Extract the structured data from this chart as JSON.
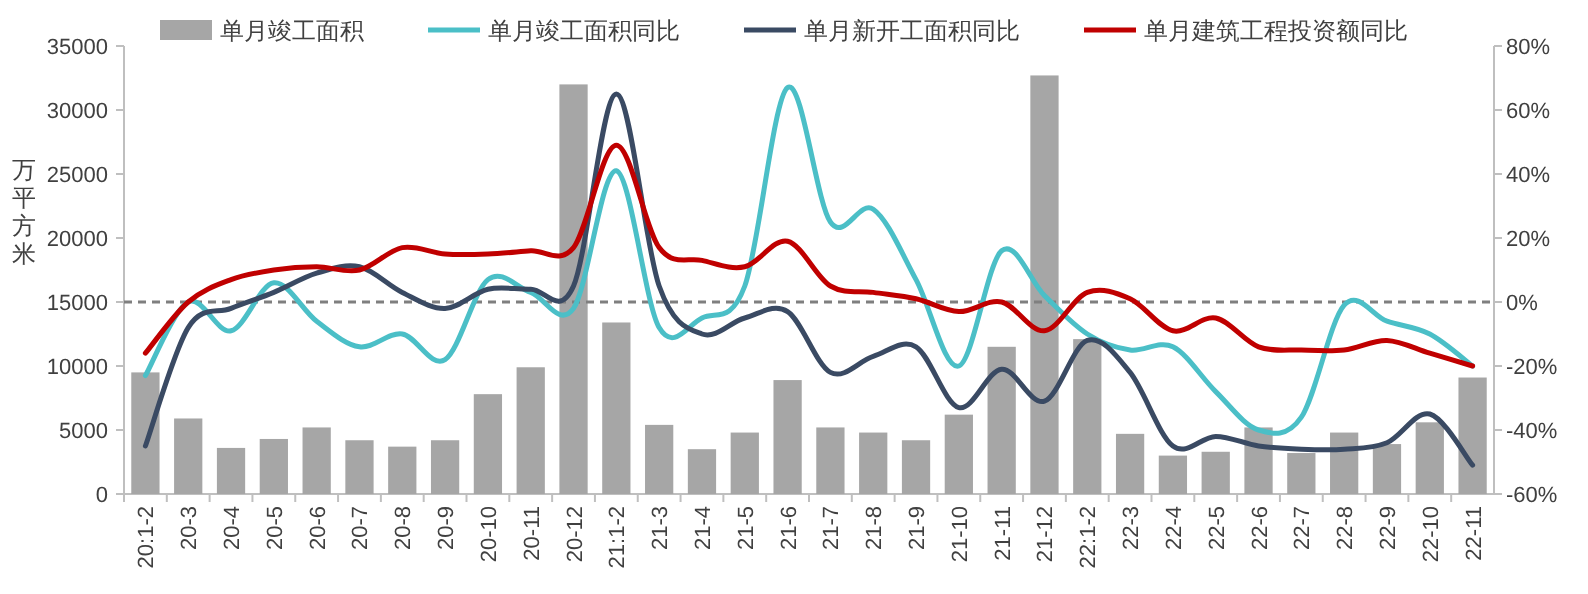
{
  "chart_data": {
    "type": "bar",
    "ylabel": "万平方米",
    "legend": "top",
    "grid": false,
    "categories": [
      "20:1-2",
      "20-3",
      "20-4",
      "20-5",
      "20-6",
      "20-7",
      "20-8",
      "20-9",
      "20-10",
      "20-11",
      "20-12",
      "21:1-2",
      "21-3",
      "21-4",
      "21-5",
      "21-6",
      "21-7",
      "21-8",
      "21-9",
      "21-10",
      "21-11",
      "21-12",
      "22:1-2",
      "22-3",
      "22-4",
      "22-5",
      "22-6",
      "22-7",
      "22-8",
      "22-9",
      "22-10",
      "22-11"
    ],
    "ylim": [
      0,
      35000
    ],
    "yticks": [
      0,
      5000,
      10000,
      15000,
      20000,
      25000,
      30000,
      35000
    ],
    "y2lim": [
      -60,
      80
    ],
    "y2ticks": [
      {
        "value": -60,
        "label": "-60%"
      },
      {
        "value": -40,
        "label": "-40%"
      },
      {
        "value": -20,
        "label": "-20%"
      },
      {
        "value": 0,
        "label": "0%"
      },
      {
        "value": 20,
        "label": "20%"
      },
      {
        "value": 40,
        "label": "40%"
      },
      {
        "value": 60,
        "label": "60%"
      },
      {
        "value": 80,
        "label": "80%"
      }
    ],
    "ref_lines": [
      {
        "axis": "y2",
        "value": 0,
        "color": "#7f7f7f",
        "line_style": "dashed"
      }
    ],
    "series": [
      {
        "name": "单月竣工面积",
        "color": "#a6a6a6",
        "values": [
          9500,
          5900,
          3600,
          4300,
          5200,
          4200,
          3700,
          4200,
          7800,
          9900,
          32000,
          13400,
          5400,
          3500,
          4800,
          8900,
          5200,
          4800,
          4200,
          6200,
          11500,
          32700,
          12100,
          4700,
          3000,
          3300,
          5200,
          3200,
          4800,
          3900,
          5600,
          9100
        ]
      },
      {
        "name": "单月竣工面积同比",
        "type": "line",
        "axis": "y2",
        "color": "#4bbfc7",
        "values": [
          -23,
          0,
          -9,
          6,
          -6,
          -14,
          -10,
          -18,
          7,
          3,
          -2,
          41,
          -8,
          -5,
          5,
          67,
          25,
          29,
          7,
          -20,
          16,
          2,
          -10,
          -15,
          -14,
          -28,
          -40,
          -36,
          -1,
          -6,
          -10,
          -20
        ]
      },
      {
        "name": "单月新开工面积同比",
        "type": "line",
        "axis": "y2",
        "color": "#3a4a63",
        "values": [
          -45,
          -8,
          -2,
          3,
          9,
          11,
          3,
          -2,
          4,
          4,
          5,
          65,
          5,
          -10,
          -5,
          -3,
          -22,
          -17,
          -14,
          -33,
          -21,
          -31,
          -12,
          -22,
          -45,
          -42,
          -45,
          -46,
          -46,
          -44,
          -35,
          -51
        ]
      },
      {
        "name": "单月建筑工程投资额同比",
        "type": "line",
        "axis": "y2",
        "color": "#c00000",
        "values": [
          -16,
          0,
          7,
          10,
          11,
          10,
          17,
          15,
          15,
          16,
          17,
          49,
          17,
          13,
          11,
          19,
          5,
          3,
          1,
          -3,
          0,
          -9,
          3,
          1,
          -9,
          -5,
          -14,
          -15,
          -15,
          -12,
          -16,
          -20
        ]
      }
    ]
  }
}
